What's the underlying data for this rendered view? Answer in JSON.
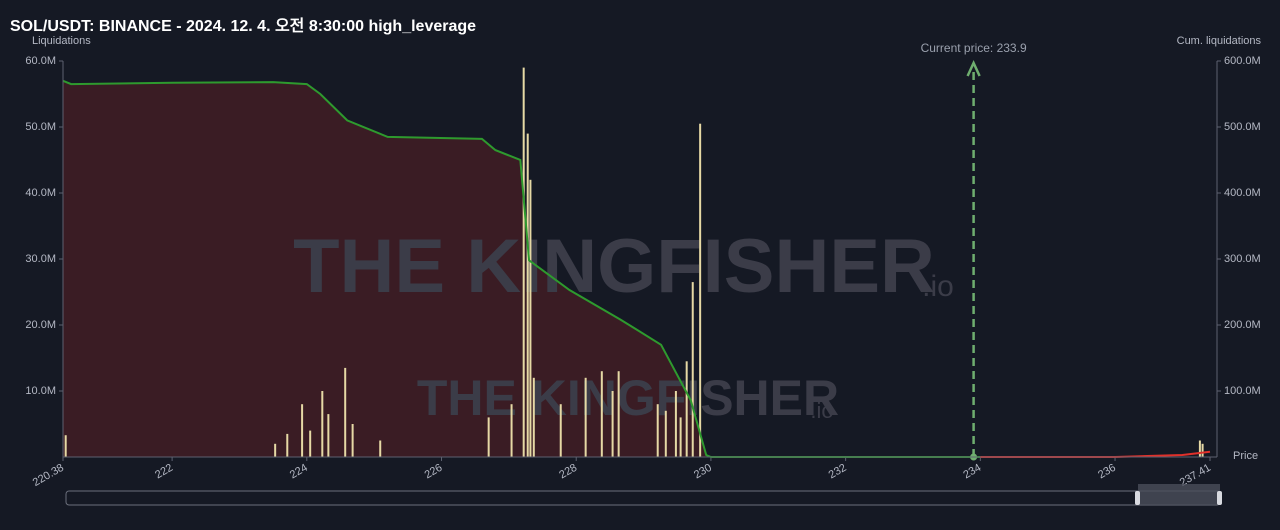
{
  "chart_data": {
    "type": "bar",
    "title": "SOL/USDT: BINANCE - 2024. 12. 4. 오전 8:30:00 high_leverage",
    "y_label": "Liquidations",
    "y2_label": "Cum. liquidations",
    "x_label": "Price",
    "watermark": "THE KINGFISHER",
    "watermark_suffix": ".io",
    "annotation": {
      "value": 233.9,
      "label": "Current price: 233.9",
      "color": "#6fae6f"
    },
    "x": [
      220.42,
      223.53,
      223.71,
      223.93,
      224.05,
      224.23,
      224.32,
      224.57,
      224.68,
      225.09,
      226.7,
      227.04,
      227.22,
      227.28,
      227.32,
      227.37,
      227.77,
      228.14,
      228.38,
      228.54,
      228.63,
      229.21,
      229.33,
      229.48,
      229.55,
      229.64,
      229.73,
      229.84,
      237.26,
      237.3
    ],
    "values": [
      3300000,
      2000000,
      3500000,
      8000000,
      4000000,
      10000000,
      6500000,
      13500000,
      5000000,
      2500000,
      6000000,
      8000000,
      59000000,
      49000000,
      42000000,
      12000000,
      8000000,
      12000000,
      13000000,
      10000000,
      13000000,
      8000000,
      7000000,
      10000000,
      6000000,
      14500000,
      26500000,
      50500000,
      2500000,
      2000000
    ],
    "color": "#e6d9a5",
    "series": [
      {
        "color": "#2e9a2e",
        "fill": "#3a1c24",
        "axis": "y2",
        "x": [
          220.38,
          220.5,
          222,
          223.5,
          224,
          224.2,
          224.6,
          225.2,
          226.6,
          226.8,
          227.17,
          227.3,
          227.9,
          228.66,
          229.26,
          229.7,
          229.93,
          230,
          234
        ],
        "values": [
          570000000,
          565000000,
          567000000,
          568000000,
          565000000,
          550000000,
          510000000,
          485000000,
          482000000,
          465000000,
          450000000,
          298000000,
          253000000,
          208000000,
          170000000,
          86000000,
          3000000,
          0,
          0
        ]
      },
      {
        "color": "#e0302a",
        "axis": "y2",
        "x": [
          234,
          236,
          237,
          237.41
        ],
        "values": [
          0,
          0,
          3000000,
          8000000
        ]
      }
    ],
    "xlim": [
      220.38,
      237.41
    ],
    "xticks": [
      220.38,
      222,
      224,
      226,
      228,
      230,
      232,
      234,
      236,
      237.41
    ],
    "ylim": [
      0,
      60000000
    ],
    "yticks": [
      {
        "value": 10000000,
        "label": "10.0M"
      },
      {
        "value": 20000000,
        "label": "20.0M"
      },
      {
        "value": 30000000,
        "label": "30.0M"
      },
      {
        "value": 40000000,
        "label": "40.0M"
      },
      {
        "value": 50000000,
        "label": "50.0M"
      },
      {
        "value": 60000000,
        "label": "60.0M"
      }
    ],
    "y2lim": [
      0,
      600000000
    ],
    "y2ticks": [
      {
        "value": 100000000,
        "label": "100.0M"
      },
      {
        "value": 200000000,
        "label": "200.0M"
      },
      {
        "value": 300000000,
        "label": "300.0M"
      },
      {
        "value": 400000000,
        "label": "400.0M"
      },
      {
        "value": 500000000,
        "label": "500.0M"
      },
      {
        "value": 600000000,
        "label": "600.0M"
      }
    ]
  }
}
